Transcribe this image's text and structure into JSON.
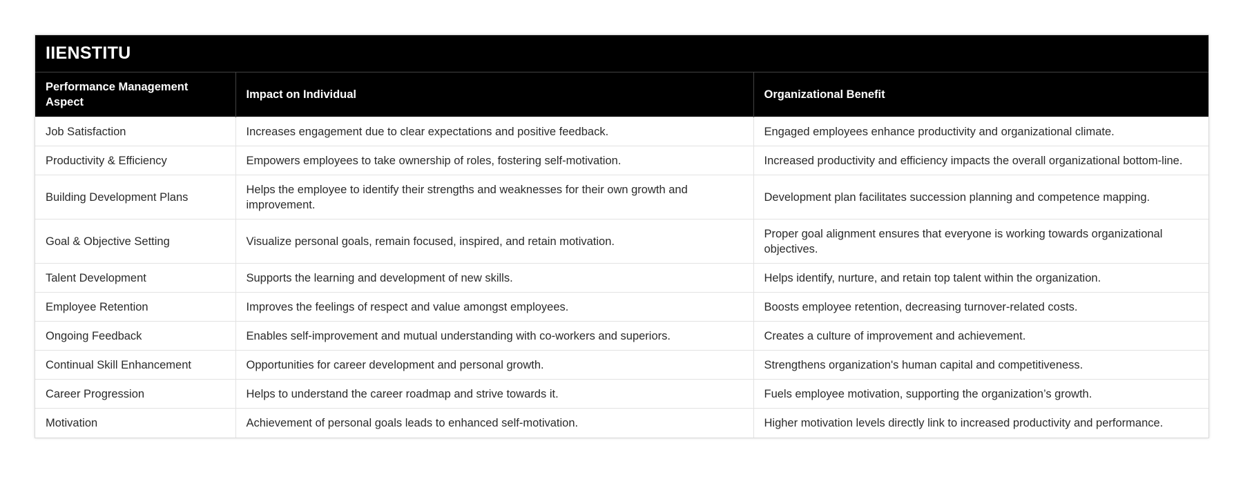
{
  "table": {
    "title": "IIENSTITU",
    "headers": [
      "Performance Management Aspect",
      "Impact on Individual",
      "Organizational Benefit"
    ],
    "rows": [
      [
        "Job Satisfaction",
        "Increases engagement due to clear expectations and positive feedback.",
        "Engaged employees enhance productivity and organizational climate."
      ],
      [
        "Productivity & Efficiency",
        "Empowers employees to take ownership of roles, fostering self-motivation.",
        "Increased productivity and efficiency impacts the overall organizational bottom-line."
      ],
      [
        "Building Development Plans",
        "Helps the employee to identify their strengths and weaknesses for their own growth and improvement.",
        "Development plan facilitates succession planning and competence mapping."
      ],
      [
        "Goal & Objective Setting",
        "Visualize personal goals, remain focused, inspired, and retain motivation.",
        "Proper goal alignment ensures that everyone is working towards organizational objectives."
      ],
      [
        "Talent Development",
        "Supports the learning and development of new skills.",
        "Helps identify, nurture, and retain top talent within the organization."
      ],
      [
        "Employee Retention",
        "Improves the feelings of respect and value amongst employees.",
        "Boosts employee retention, decreasing turnover-related costs."
      ],
      [
        "Ongoing Feedback",
        "Enables self-improvement and mutual understanding with co-workers and superiors.",
        "Creates a culture of improvement and achievement."
      ],
      [
        "Continual Skill Enhancement",
        "Opportunities for career development and personal growth.",
        "Strengthens organization's human capital and competitiveness."
      ],
      [
        "Career Progression",
        "Helps to understand the career roadmap and strive towards it.",
        "Fuels employee motivation, supporting the organization’s growth."
      ],
      [
        "Motivation",
        "Achievement of personal goals leads to enhanced self-motivation.",
        "Higher motivation levels directly link to increased productivity and performance."
      ]
    ]
  }
}
